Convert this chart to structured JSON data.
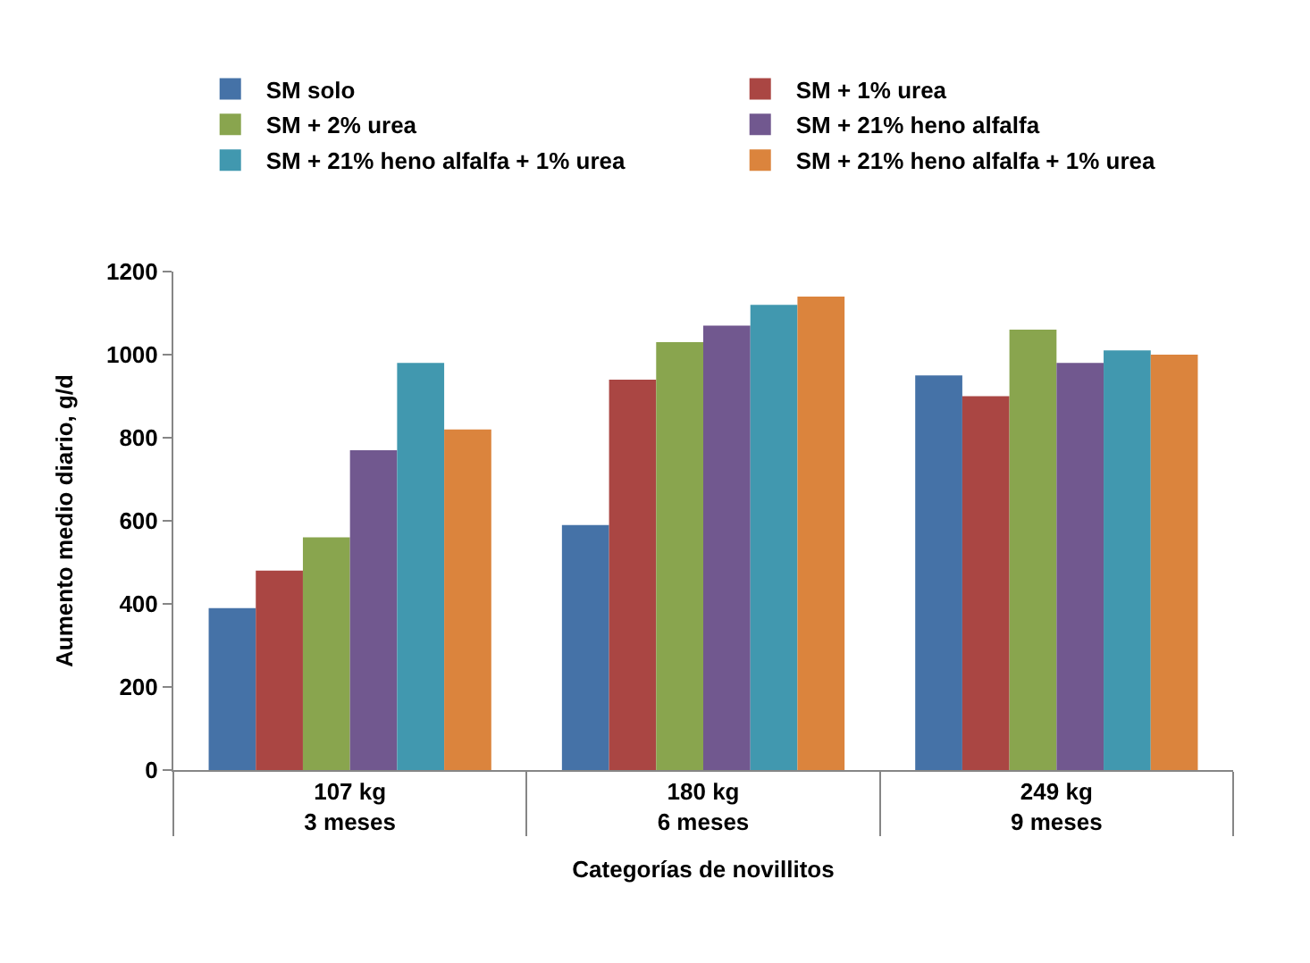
{
  "chart_data": {
    "type": "bar",
    "xlabel": "Categorías de novillitos",
    "ylabel": "Aumento medio diario, g/d",
    "categories": [
      "107 kg\n3 meses",
      "180 kg\n6 meses",
      "249 kg\n9 meses"
    ],
    "series": [
      {
        "name": "SM solo",
        "color": "#4572a7",
        "values": [
          390,
          590,
          950
        ]
      },
      {
        "name": "SM + 1% urea",
        "color": "#aa4643",
        "values": [
          480,
          940,
          900
        ]
      },
      {
        "name": "SM + 2% urea",
        "color": "#89a54e",
        "values": [
          560,
          1030,
          1060
        ]
      },
      {
        "name": "SM + 21% heno alfalfa",
        "color": "#71588f",
        "values": [
          770,
          1070,
          980
        ]
      },
      {
        "name": "SM + 21% heno alfalfa + 1% urea",
        "color": "#4198af",
        "values": [
          980,
          1120,
          1010
        ]
      },
      {
        "name": "SM + 21% heno alfalfa + 1% urea",
        "color": "#db843d",
        "values": [
          820,
          1140,
          1000
        ]
      }
    ],
    "ylim": [
      0,
      1200
    ],
    "yticks": [
      0,
      200,
      400,
      600,
      800,
      1000,
      1200
    ],
    "grid": false,
    "legend": "top"
  }
}
